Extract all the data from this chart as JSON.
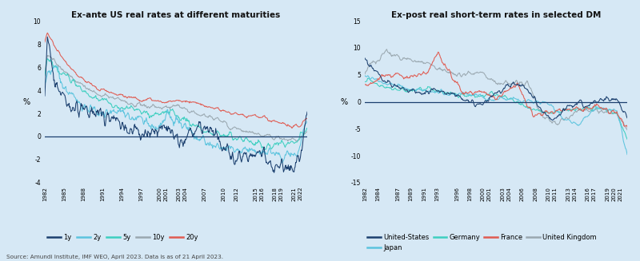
{
  "background_color": "#d6e8f5",
  "title_left": "Ex-ante US real rates at different maturities",
  "title_right": "Ex-post real short-term rates in selected DM",
  "source_text": "Source: Amundi Institute, IMF WEO, April 2023. Data is as of 21 April 2023.",
  "left_ylim": [
    -4,
    10
  ],
  "right_ylim": [
    -15,
    15
  ],
  "left_yticks": [
    -4,
    -2,
    0,
    2,
    4,
    6,
    8,
    10
  ],
  "right_yticks": [
    -15,
    -10,
    -5,
    0,
    5,
    10,
    15
  ],
  "ylabel": "%",
  "colors_left": {
    "1y": "#1b3f6e",
    "2y": "#5cc4de",
    "5y": "#3dcfc0",
    "10y": "#9aa8b0",
    "20y": "#e05a50"
  },
  "colors_right": {
    "United-States": "#1b3f6e",
    "Japan": "#5cc4de",
    "Germany": "#3dcfc0",
    "France": "#e05a50",
    "United Kingdom": "#9aa8b0"
  },
  "legend_left": [
    "1y",
    "2y",
    "5y",
    "10y",
    "20y"
  ],
  "legend_right": [
    "United-States",
    "Japan",
    "Germany",
    "France",
    "United Kingdom"
  ],
  "left_xticks": [
    1982,
    1985,
    1988,
    1991,
    1994,
    1997,
    2000,
    2001,
    2003,
    2004,
    2007,
    2010,
    2012,
    2015,
    2016,
    2018,
    2019,
    2021,
    2022
  ],
  "right_xticks": [
    1982,
    1984,
    1987,
    1989,
    1991,
    1993,
    1996,
    1998,
    2000,
    2001,
    2003,
    2004,
    2006,
    2008,
    2010,
    2011,
    2013,
    2014,
    2016,
    2017,
    2019,
    2020,
    2021
  ]
}
